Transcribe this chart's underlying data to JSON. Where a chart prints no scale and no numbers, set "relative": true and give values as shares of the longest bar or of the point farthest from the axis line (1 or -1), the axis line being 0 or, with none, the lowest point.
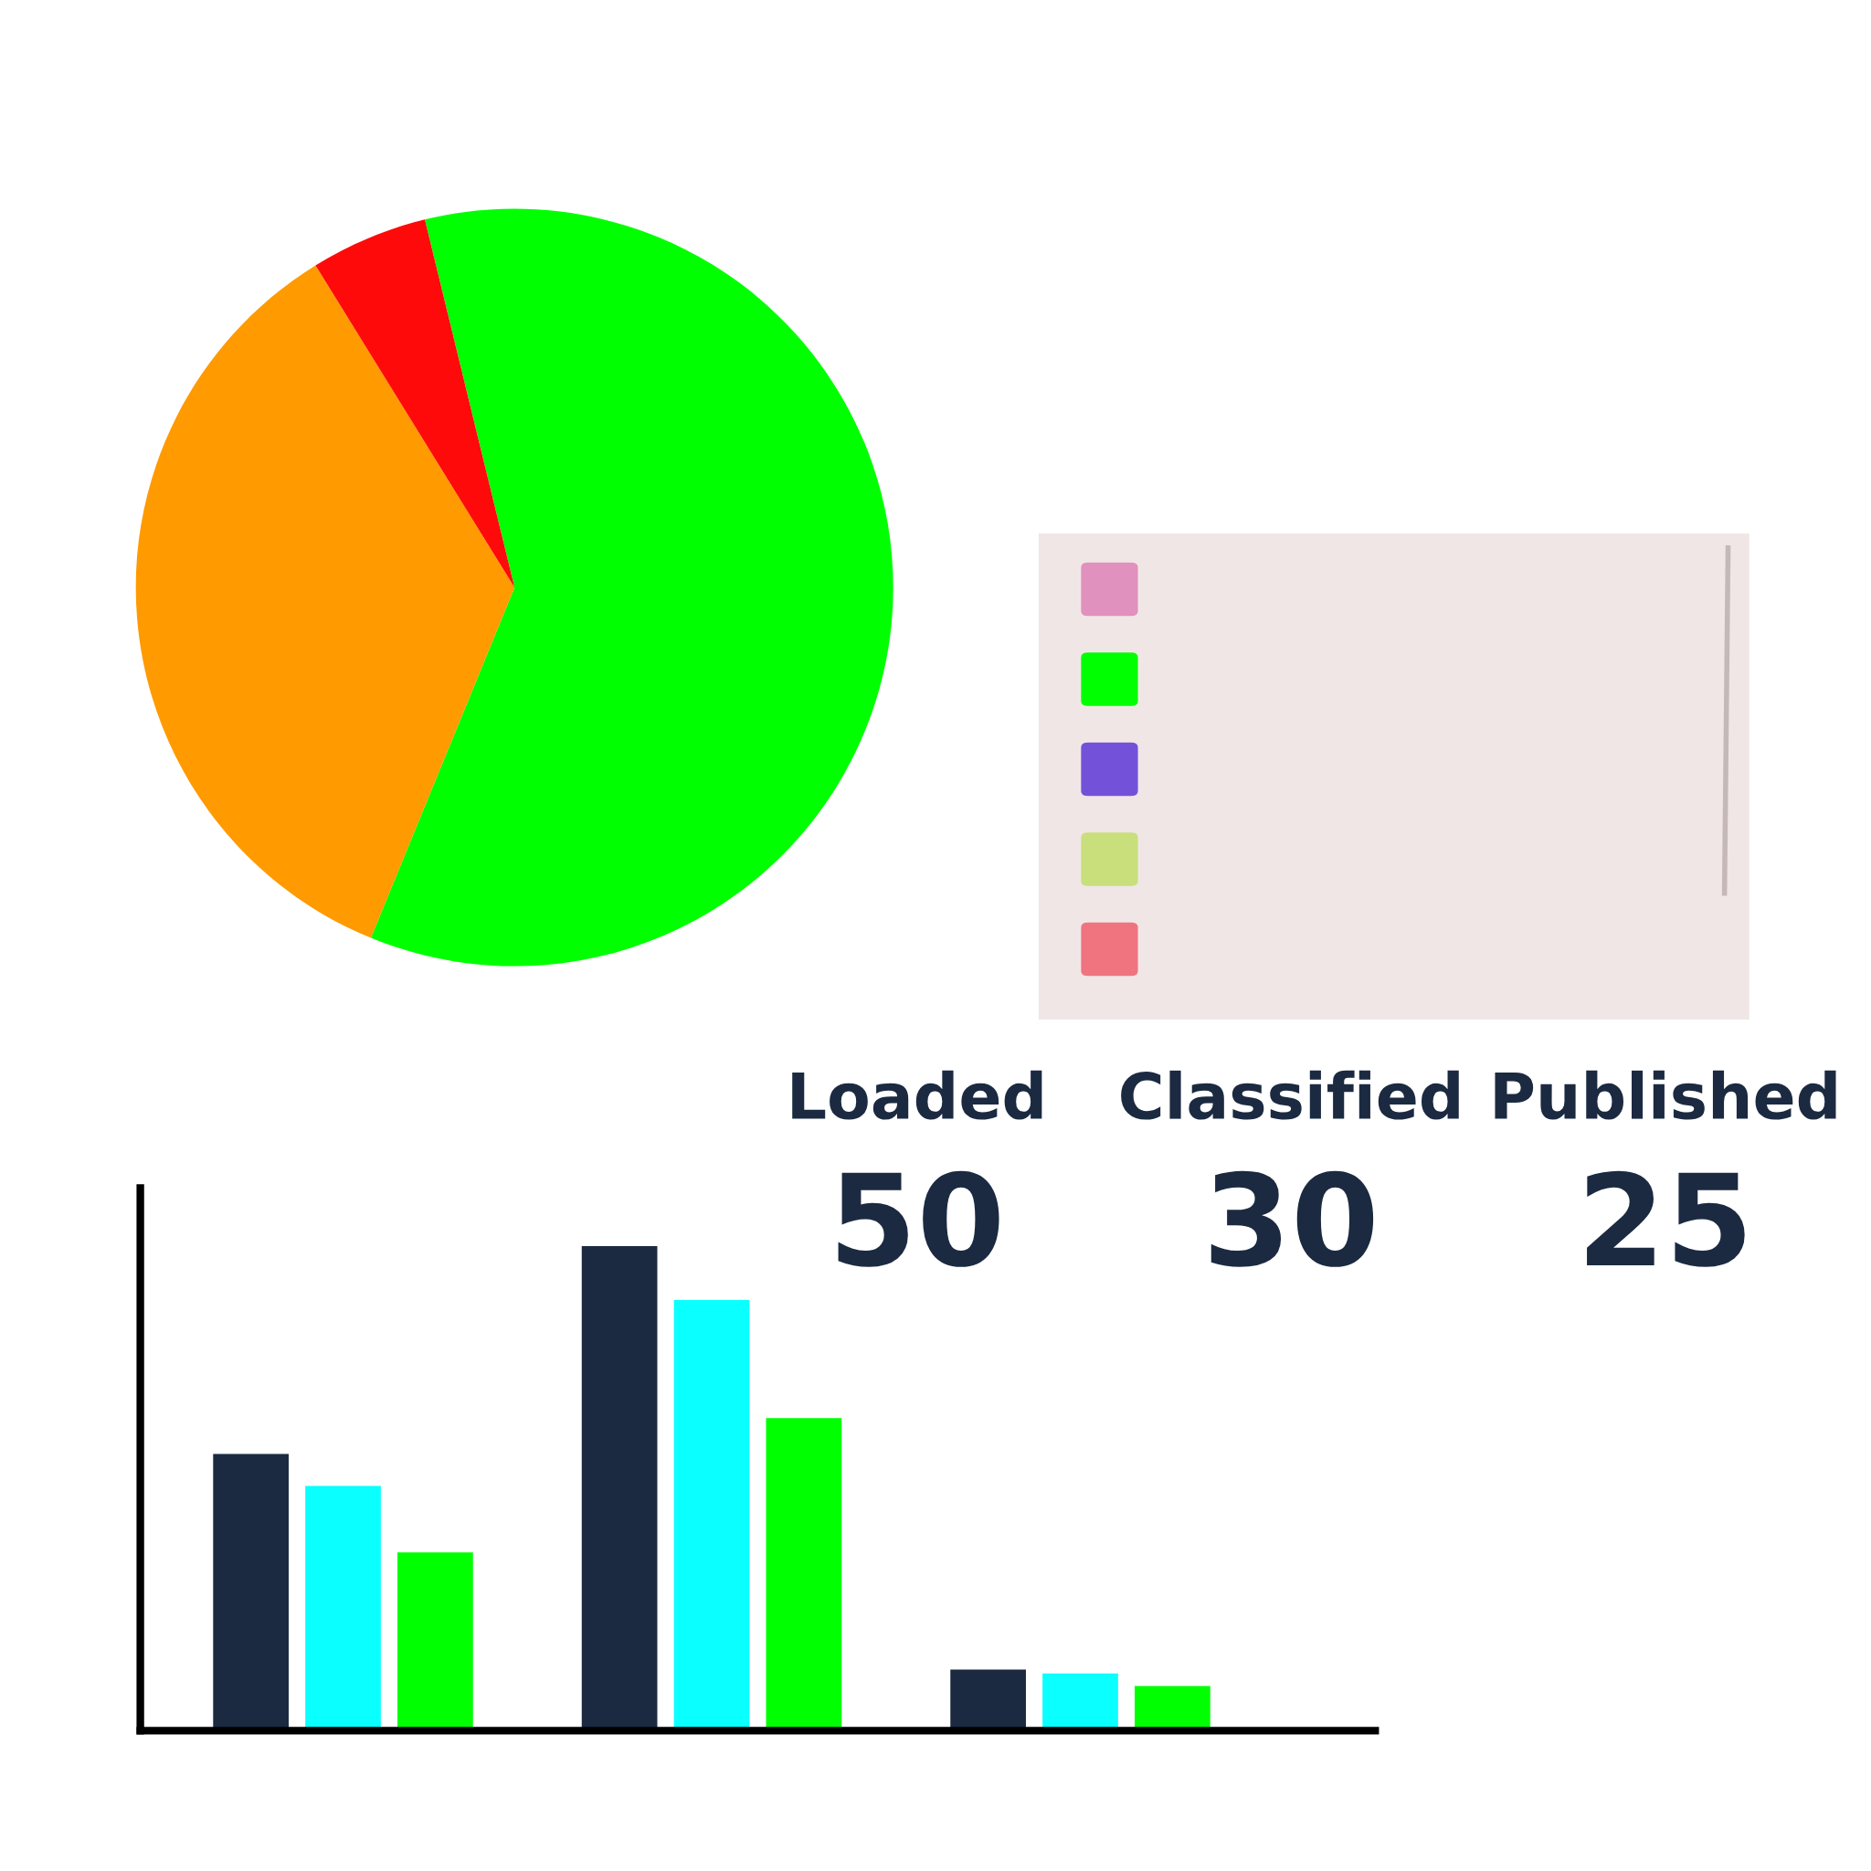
{
  "chart_data": [
    {
      "type": "pie",
      "categories": [
        null,
        null,
        null
      ],
      "values": [
        60,
        35,
        5
      ],
      "colors": [
        "#00ff00",
        "#ff9a00",
        "#ff0a0a"
      ]
    },
    {
      "type": "other",
      "categories": [
        "Loaded",
        "Classified",
        "Published"
      ],
      "values": [
        50,
        30,
        25
      ],
      "data_labels": true
    },
    {
      "type": "bar",
      "relative": true,
      "categories": [
        null,
        null,
        null
      ],
      "series": [
        {
          "color": "#1b2a41",
          "values": [
            0.571,
            1,
            0.126
          ]
        },
        {
          "color": "#0affff",
          "values": [
            0.505,
            0.889,
            0.118
          ]
        },
        {
          "color": "#00ff00",
          "values": [
            0.368,
            0.645,
            0.092
          ]
        }
      ]
    }
  ]
}
